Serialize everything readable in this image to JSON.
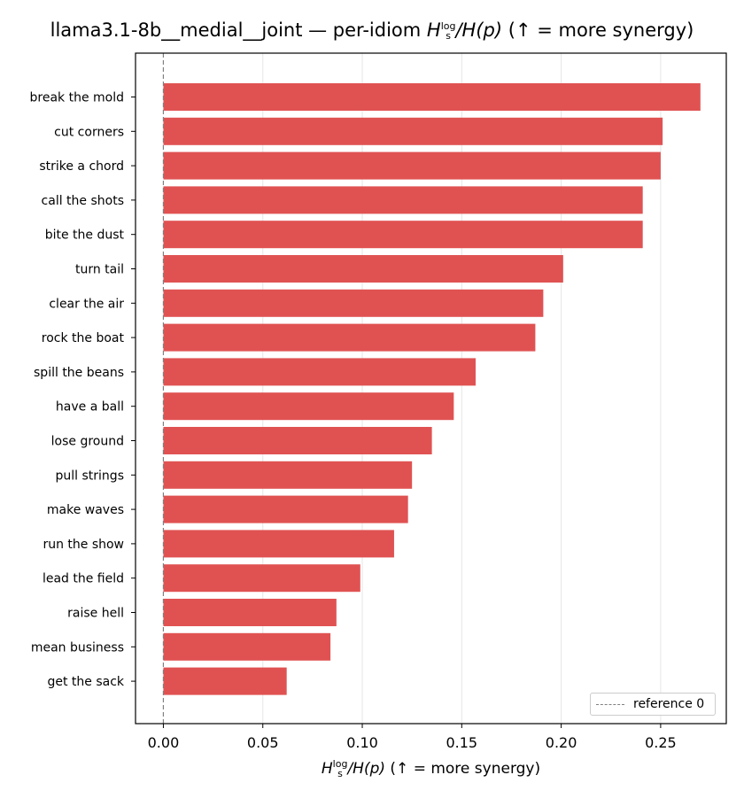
{
  "chart_data": {
    "type": "bar",
    "orientation": "horizontal",
    "title_prefix": "llama3.1-8b__medial__joint — per-idiom ",
    "title_suffix": "  (↑ = more synergy)",
    "metric": {
      "symbol": "H",
      "sup": "log",
      "sub": "s",
      "rest": "/H(p)"
    },
    "xlabel_suffix": "  (↑ = more synergy)",
    "categories": [
      "break the mold",
      "cut corners",
      "strike a chord",
      "call the shots",
      "bite the dust",
      "turn tail",
      "clear the air",
      "rock the boat",
      "spill the beans",
      "have a ball",
      "lose ground",
      "pull strings",
      "make waves",
      "run the show",
      "lead the field",
      "raise hell",
      "mean business",
      "get the sack"
    ],
    "values": [
      0.27,
      0.251,
      0.25,
      0.241,
      0.241,
      0.201,
      0.191,
      0.187,
      0.157,
      0.146,
      0.135,
      0.125,
      0.123,
      0.116,
      0.099,
      0.087,
      0.084,
      0.062
    ],
    "xlim": [
      -0.014,
      0.283
    ],
    "xticks": [
      "0.00",
      "0.05",
      "0.10",
      "0.15",
      "0.20",
      "0.25"
    ],
    "xtick_values": [
      0.0,
      0.05,
      0.1,
      0.15,
      0.2,
      0.25
    ],
    "bar_color": "#e05252",
    "grid": "vertical",
    "reference_line": {
      "value": 0,
      "label": "reference 0",
      "style": "dashed",
      "color": "#808080"
    },
    "legend_placement": "lower-right"
  }
}
